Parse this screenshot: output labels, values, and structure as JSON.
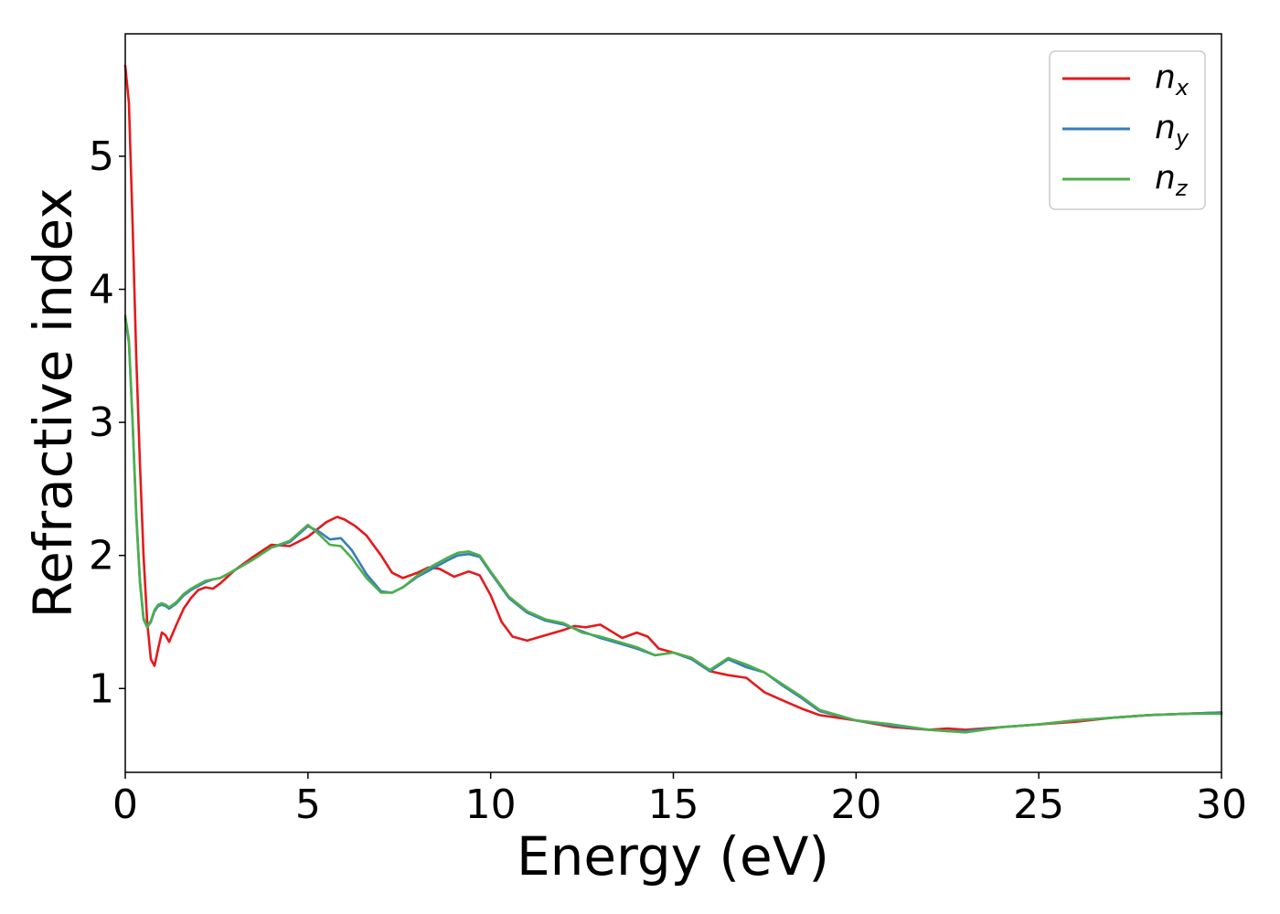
{
  "chart_data": {
    "type": "line",
    "title": "",
    "xlabel": "Energy (eV)",
    "ylabel": "Refractive index",
    "xlim": [
      0,
      30
    ],
    "ylim": [
      0.37,
      5.92
    ],
    "xticks": [
      0,
      5,
      10,
      15,
      20,
      25,
      30
    ],
    "yticks": [
      1,
      2,
      3,
      4,
      5
    ],
    "grid": false,
    "legend_position": "top-right",
    "series": [
      {
        "name": "n",
        "subscript": "x",
        "color": "#e41a1c",
        "x": [
          0,
          0.1,
          0.2,
          0.3,
          0.4,
          0.5,
          0.6,
          0.7,
          0.8,
          0.9,
          1.0,
          1.1,
          1.2,
          1.4,
          1.6,
          1.8,
          2.0,
          2.2,
          2.4,
          2.6,
          2.8,
          3.0,
          3.5,
          4.0,
          4.5,
          5.0,
          5.5,
          5.8,
          6.0,
          6.3,
          6.6,
          7.0,
          7.3,
          7.6,
          8.0,
          8.3,
          8.6,
          9.0,
          9.4,
          9.7,
          10.0,
          10.3,
          10.6,
          11.0,
          11.5,
          12.0,
          12.3,
          12.6,
          13.0,
          13.3,
          13.6,
          14.0,
          14.3,
          14.6,
          15.0,
          15.5,
          16.0,
          16.5,
          17.0,
          17.5,
          18.0,
          18.5,
          19.0,
          20.0,
          21.0,
          22.0,
          22.5,
          23.0,
          24.0,
          25.0,
          26.0,
          27.0,
          28.0,
          29.0,
          30.0
        ],
        "y": [
          5.68,
          5.4,
          4.5,
          3.5,
          2.7,
          2.0,
          1.5,
          1.22,
          1.17,
          1.3,
          1.42,
          1.4,
          1.35,
          1.48,
          1.6,
          1.68,
          1.74,
          1.76,
          1.75,
          1.79,
          1.84,
          1.89,
          1.99,
          2.08,
          2.07,
          2.14,
          2.25,
          2.29,
          2.27,
          2.22,
          2.15,
          2.0,
          1.87,
          1.83,
          1.87,
          1.91,
          1.9,
          1.84,
          1.88,
          1.85,
          1.7,
          1.5,
          1.39,
          1.36,
          1.4,
          1.44,
          1.47,
          1.46,
          1.48,
          1.43,
          1.38,
          1.42,
          1.39,
          1.3,
          1.27,
          1.23,
          1.13,
          1.1,
          1.08,
          0.97,
          0.91,
          0.85,
          0.8,
          0.76,
          0.71,
          0.69,
          0.7,
          0.69,
          0.71,
          0.73,
          0.75,
          0.78,
          0.8,
          0.81,
          0.82
        ]
      },
      {
        "name": "n",
        "subscript": "y",
        "color": "#377eb8",
        "x": [
          0,
          0.1,
          0.2,
          0.3,
          0.4,
          0.5,
          0.6,
          0.7,
          0.8,
          0.9,
          1.0,
          1.1,
          1.2,
          1.4,
          1.6,
          1.8,
          2.0,
          2.2,
          2.4,
          2.6,
          2.8,
          3.0,
          3.5,
          4.0,
          4.5,
          5.0,
          5.3,
          5.6,
          5.9,
          6.2,
          6.6,
          7.0,
          7.3,
          7.6,
          8.0,
          8.4,
          8.8,
          9.1,
          9.4,
          9.7,
          10.0,
          10.5,
          11.0,
          11.5,
          12.0,
          12.5,
          13.0,
          13.5,
          14.0,
          14.5,
          15.0,
          15.5,
          16.0,
          16.5,
          17.0,
          17.5,
          18.0,
          18.5,
          19.0,
          20.0,
          21.0,
          22.0,
          22.5,
          23.0,
          24.0,
          25.0,
          26.0,
          27.0,
          28.0,
          29.0,
          30.0
        ],
        "y": [
          3.78,
          3.6,
          3.0,
          2.3,
          1.8,
          1.52,
          1.46,
          1.5,
          1.58,
          1.62,
          1.63,
          1.62,
          1.6,
          1.64,
          1.7,
          1.74,
          1.77,
          1.8,
          1.82,
          1.83,
          1.86,
          1.89,
          1.97,
          2.06,
          2.1,
          2.22,
          2.18,
          2.12,
          2.13,
          2.04,
          1.86,
          1.73,
          1.72,
          1.76,
          1.84,
          1.9,
          1.96,
          2.0,
          2.01,
          1.99,
          1.87,
          1.68,
          1.57,
          1.51,
          1.48,
          1.43,
          1.38,
          1.34,
          1.3,
          1.25,
          1.27,
          1.22,
          1.13,
          1.22,
          1.16,
          1.12,
          1.02,
          0.93,
          0.83,
          0.76,
          0.72,
          0.69,
          0.68,
          0.68,
          0.71,
          0.73,
          0.76,
          0.78,
          0.8,
          0.81,
          0.82
        ]
      },
      {
        "name": "n",
        "subscript": "z",
        "color": "#4daf4a",
        "x": [
          0,
          0.1,
          0.2,
          0.3,
          0.4,
          0.5,
          0.6,
          0.7,
          0.8,
          0.9,
          1.0,
          1.1,
          1.2,
          1.4,
          1.6,
          1.8,
          2.0,
          2.2,
          2.4,
          2.6,
          2.8,
          3.0,
          3.5,
          4.0,
          4.5,
          5.0,
          5.3,
          5.6,
          5.9,
          6.2,
          6.6,
          7.0,
          7.3,
          7.6,
          8.0,
          8.4,
          8.8,
          9.1,
          9.4,
          9.7,
          10.0,
          10.5,
          11.0,
          11.5,
          12.0,
          12.5,
          13.0,
          13.5,
          14.0,
          14.5,
          15.0,
          15.5,
          16.0,
          16.5,
          17.0,
          17.5,
          18.0,
          18.5,
          19.0,
          20.0,
          21.0,
          22.0,
          22.5,
          23.0,
          24.0,
          25.0,
          26.0,
          27.0,
          28.0,
          29.0,
          30.0
        ],
        "y": [
          3.8,
          3.62,
          3.02,
          2.32,
          1.82,
          1.53,
          1.46,
          1.51,
          1.59,
          1.63,
          1.64,
          1.63,
          1.61,
          1.65,
          1.71,
          1.75,
          1.78,
          1.81,
          1.82,
          1.83,
          1.86,
          1.89,
          1.97,
          2.06,
          2.11,
          2.23,
          2.16,
          2.08,
          2.07,
          1.98,
          1.83,
          1.72,
          1.72,
          1.76,
          1.85,
          1.92,
          1.98,
          2.02,
          2.03,
          2.0,
          1.88,
          1.69,
          1.58,
          1.52,
          1.49,
          1.42,
          1.39,
          1.35,
          1.31,
          1.25,
          1.27,
          1.23,
          1.14,
          1.23,
          1.18,
          1.12,
          1.03,
          0.94,
          0.84,
          0.76,
          0.73,
          0.69,
          0.68,
          0.67,
          0.71,
          0.73,
          0.76,
          0.78,
          0.8,
          0.81,
          0.81
        ]
      }
    ]
  }
}
